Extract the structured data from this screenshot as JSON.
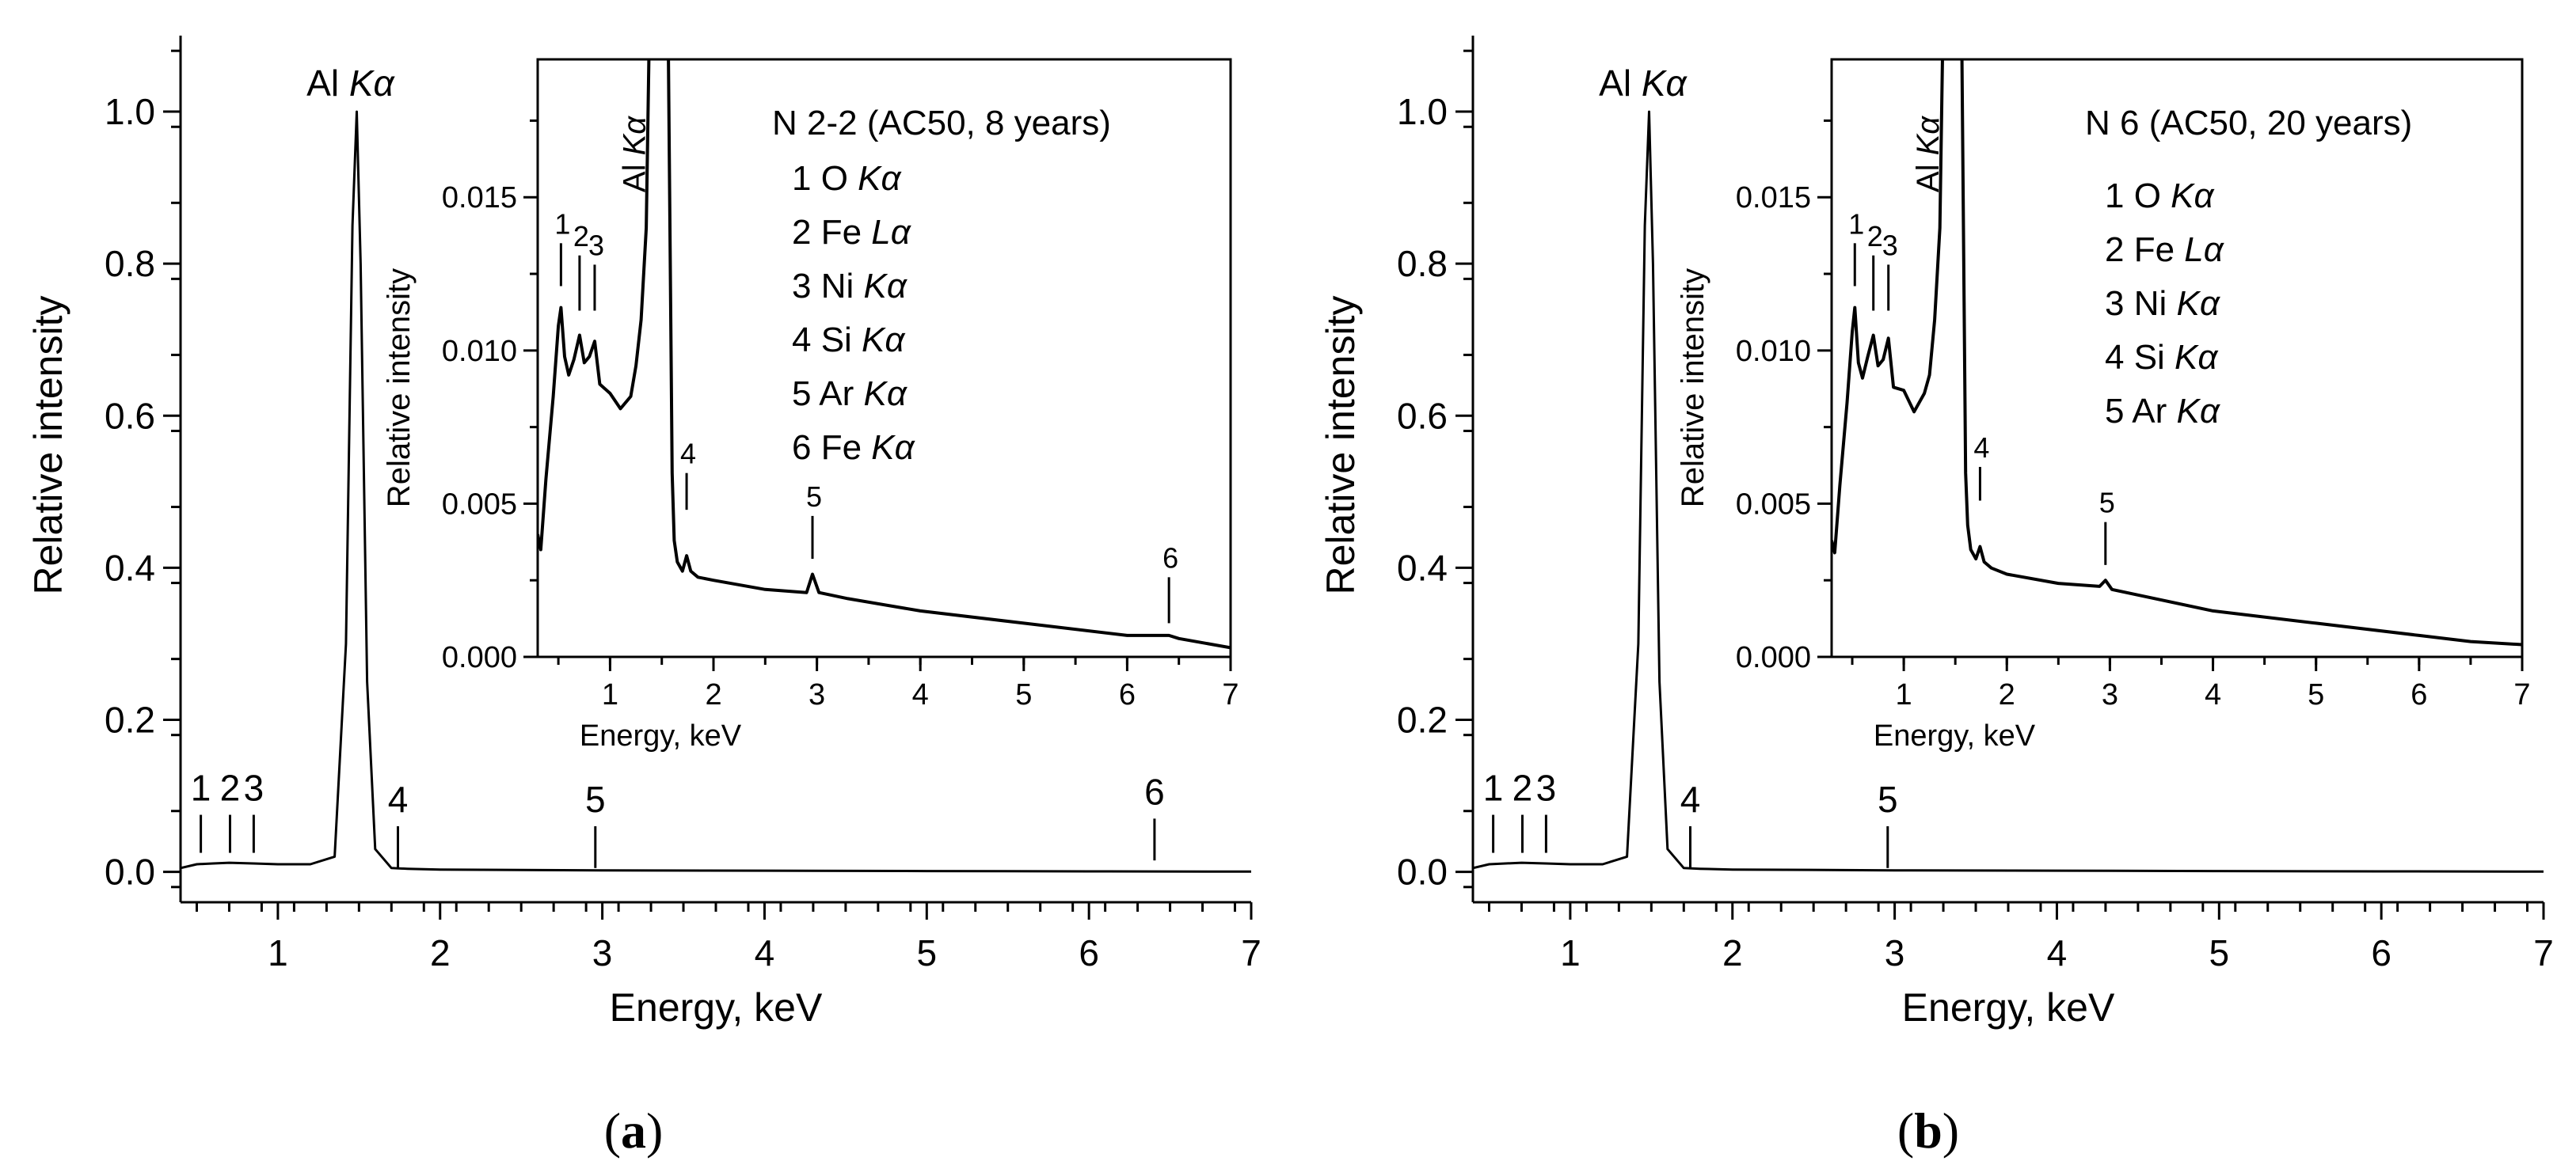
{
  "chart_data": [
    {
      "id": "a",
      "type": "line",
      "panel_label": "(a)",
      "panel_letter": "a",
      "xlabel": "Energy, keV",
      "ylabel": "Relative intensity",
      "xlim": [
        0.4,
        7.0
      ],
      "ylim": [
        -0.04,
        1.1
      ],
      "xticks": [
        1,
        2,
        3,
        4,
        5,
        6,
        7
      ],
      "yticks": [
        0.0,
        0.2,
        0.4,
        0.6,
        0.8,
        1.0
      ],
      "ytick_labels": [
        "0.0",
        "0.2",
        "0.4",
        "0.6",
        "0.8",
        "1.0"
      ],
      "main_peak_label": "Al Kα",
      "main_peak_label_parts": [
        "Al ",
        "Kα"
      ],
      "main_peak": {
        "energy": 1.486,
        "intensity": 1.0
      },
      "spectrum": {
        "energy": [
          0.4,
          0.5,
          0.6,
          0.7,
          0.85,
          1.0,
          1.2,
          1.35,
          1.42,
          1.46,
          1.486,
          1.51,
          1.55,
          1.6,
          1.7,
          1.8,
          2.0,
          3.0,
          4.0,
          5.0,
          6.0,
          7.0
        ],
        "intensity": [
          0.005,
          0.01,
          0.011,
          0.012,
          0.011,
          0.01,
          0.01,
          0.02,
          0.3,
          0.85,
          1.0,
          0.8,
          0.25,
          0.03,
          0.005,
          0.004,
          0.003,
          0.002,
          0.0015,
          0.001,
          0.0006,
          0.0003
        ]
      },
      "markers": [
        {
          "label": "1",
          "energy": 0.525,
          "y1": 0.025,
          "y2": 0.075
        },
        {
          "label": "2",
          "energy": 0.705,
          "y1": 0.025,
          "y2": 0.075
        },
        {
          "label": "3",
          "energy": 0.851,
          "y1": 0.025,
          "y2": 0.075
        },
        {
          "label": "4",
          "energy": 1.74,
          "y1": 0.005,
          "y2": 0.06
        },
        {
          "label": "5",
          "energy": 2.957,
          "y1": 0.005,
          "y2": 0.06
        },
        {
          "label": "6",
          "energy": 6.404,
          "y1": 0.015,
          "y2": 0.07
        }
      ],
      "inset": {
        "xlim": [
          0.3,
          7.0
        ],
        "ylim": [
          0.0,
          0.0195
        ],
        "xticks": [
          1,
          2,
          3,
          4,
          5,
          6,
          7
        ],
        "yticks": [
          0.0,
          0.005,
          0.01,
          0.015
        ],
        "ytick_labels": [
          "0.000",
          "0.005",
          "0.010",
          "0.015"
        ],
        "xlabel": "Energy, keV",
        "ylabel": "Relative intensity",
        "peak_label": "Al Kα",
        "peak_label_parts": [
          "Al ",
          "Kα"
        ],
        "sample": "N 2-2 (AC50, 8 years)",
        "legend": [
          {
            "n": "1",
            "element": "O",
            "line": "Kα"
          },
          {
            "n": "2",
            "element": "Fe",
            "line": "Lα"
          },
          {
            "n": "3",
            "element": "Ni",
            "line": "Kα"
          },
          {
            "n": "4",
            "element": "Si",
            "line": "Kα"
          },
          {
            "n": "5",
            "element": "Ar",
            "line": "Kα"
          },
          {
            "n": "6",
            "element": "Fe",
            "line": "Kα"
          }
        ],
        "spectrum": {
          "energy": [
            0.3,
            0.33,
            0.38,
            0.45,
            0.5,
            0.525,
            0.56,
            0.6,
            0.65,
            0.705,
            0.75,
            0.8,
            0.851,
            0.9,
            1.0,
            1.1,
            1.2,
            1.25,
            1.3,
            1.35,
            1.4,
            1.45,
            1.5,
            1.55,
            1.6,
            1.62,
            1.65,
            1.7,
            1.74,
            1.78,
            1.85,
            2.0,
            2.5,
            2.9,
            2.957,
            3.02,
            3.3,
            4.0,
            5.0,
            6.0,
            6.404,
            6.5,
            7.0
          ],
          "intensity": [
            0.004,
            0.0035,
            0.0058,
            0.0085,
            0.0108,
            0.0114,
            0.0098,
            0.0092,
            0.0097,
            0.0105,
            0.0096,
            0.0098,
            0.0103,
            0.0089,
            0.0086,
            0.0081,
            0.0085,
            0.0095,
            0.011,
            0.014,
            0.025,
            0.025,
            0.025,
            0.025,
            0.006,
            0.0038,
            0.0031,
            0.0028,
            0.0033,
            0.0028,
            0.0026,
            0.0025,
            0.0022,
            0.0021,
            0.0027,
            0.0021,
            0.0019,
            0.0015,
            0.0011,
            0.0007,
            0.0007,
            0.0006,
            0.0003
          ]
        },
        "markers": [
          {
            "label": "1",
            "energy": 0.525,
            "y1": 0.0121,
            "y2": 0.0135
          },
          {
            "label": "2",
            "energy": 0.705,
            "y1": 0.0113,
            "y2": 0.0131
          },
          {
            "label": "3",
            "energy": 0.851,
            "y1": 0.0113,
            "y2": 0.0128
          },
          {
            "label": "4",
            "energy": 1.74,
            "y1": 0.0048,
            "y2": 0.006
          },
          {
            "label": "5",
            "energy": 2.957,
            "y1": 0.0032,
            "y2": 0.0046
          },
          {
            "label": "6",
            "energy": 6.404,
            "y1": 0.0011,
            "y2": 0.0026
          }
        ]
      }
    },
    {
      "id": "b",
      "type": "line",
      "panel_label": "(b)",
      "panel_letter": "b",
      "xlabel": "Energy, keV",
      "ylabel": "Relative intensity",
      "xlim": [
        0.4,
        7.0
      ],
      "ylim": [
        -0.04,
        1.1
      ],
      "xticks": [
        1,
        2,
        3,
        4,
        5,
        6,
        7
      ],
      "yticks": [
        0.0,
        0.2,
        0.4,
        0.6,
        0.8,
        1.0
      ],
      "ytick_labels": [
        "0.0",
        "0.2",
        "0.4",
        "0.6",
        "0.8",
        "1.0"
      ],
      "main_peak_label": "Al Kα",
      "main_peak_label_parts": [
        "Al ",
        "Kα"
      ],
      "main_peak": {
        "energy": 1.486,
        "intensity": 1.0
      },
      "spectrum": {
        "energy": [
          0.4,
          0.5,
          0.6,
          0.7,
          0.85,
          1.0,
          1.2,
          1.35,
          1.42,
          1.46,
          1.486,
          1.51,
          1.55,
          1.6,
          1.7,
          1.8,
          2.0,
          3.0,
          4.0,
          5.0,
          6.0,
          7.0
        ],
        "intensity": [
          0.005,
          0.01,
          0.011,
          0.012,
          0.011,
          0.01,
          0.01,
          0.02,
          0.3,
          0.85,
          1.0,
          0.8,
          0.25,
          0.03,
          0.005,
          0.004,
          0.003,
          0.002,
          0.0015,
          0.001,
          0.0006,
          0.0003
        ]
      },
      "markers": [
        {
          "label": "1",
          "energy": 0.525,
          "y1": 0.025,
          "y2": 0.075
        },
        {
          "label": "2",
          "energy": 0.705,
          "y1": 0.025,
          "y2": 0.075
        },
        {
          "label": "3",
          "energy": 0.851,
          "y1": 0.025,
          "y2": 0.075
        },
        {
          "label": "4",
          "energy": 1.74,
          "y1": 0.005,
          "y2": 0.06
        },
        {
          "label": "5",
          "energy": 2.957,
          "y1": 0.005,
          "y2": 0.06
        }
      ],
      "inset": {
        "xlim": [
          0.3,
          7.0
        ],
        "ylim": [
          0.0,
          0.0195
        ],
        "xticks": [
          1,
          2,
          3,
          4,
          5,
          6,
          7
        ],
        "yticks": [
          0.0,
          0.005,
          0.01,
          0.015
        ],
        "ytick_labels": [
          "0.000",
          "0.005",
          "0.010",
          "0.015"
        ],
        "xlabel": "Energy, keV",
        "ylabel": "Relative intensity",
        "peak_label": "Al Kα",
        "peak_label_parts": [
          "Al ",
          "Kα"
        ],
        "sample": "N 6 (AC50, 20 years)",
        "legend": [
          {
            "n": "1",
            "element": "O",
            "line": "Kα"
          },
          {
            "n": "2",
            "element": "Fe",
            "line": "Lα"
          },
          {
            "n": "3",
            "element": "Ni",
            "line": "Kα"
          },
          {
            "n": "4",
            "element": "Si",
            "line": "Kα"
          },
          {
            "n": "5",
            "element": "Ar",
            "line": "Kα"
          }
        ],
        "spectrum": {
          "energy": [
            0.3,
            0.33,
            0.38,
            0.45,
            0.5,
            0.525,
            0.56,
            0.6,
            0.65,
            0.705,
            0.75,
            0.8,
            0.851,
            0.9,
            1.0,
            1.1,
            1.2,
            1.25,
            1.3,
            1.35,
            1.4,
            1.45,
            1.5,
            1.55,
            1.6,
            1.62,
            1.65,
            1.7,
            1.74,
            1.78,
            1.85,
            2.0,
            2.5,
            2.9,
            2.957,
            3.02,
            3.3,
            4.0,
            5.0,
            6.0,
            6.5,
            7.0
          ],
          "intensity": [
            0.0038,
            0.0034,
            0.0056,
            0.0083,
            0.0106,
            0.0114,
            0.0096,
            0.0091,
            0.0098,
            0.0105,
            0.0095,
            0.0097,
            0.0104,
            0.0088,
            0.0087,
            0.008,
            0.0086,
            0.0092,
            0.011,
            0.014,
            0.025,
            0.025,
            0.025,
            0.025,
            0.006,
            0.0043,
            0.0035,
            0.0032,
            0.0036,
            0.0031,
            0.0029,
            0.0027,
            0.0024,
            0.0023,
            0.0025,
            0.0022,
            0.002,
            0.0015,
            0.0011,
            0.0007,
            0.0005,
            0.0004
          ]
        },
        "markers": [
          {
            "label": "1",
            "energy": 0.525,
            "y1": 0.0121,
            "y2": 0.0135
          },
          {
            "label": "2",
            "energy": 0.705,
            "y1": 0.0113,
            "y2": 0.0131
          },
          {
            "label": "3",
            "energy": 0.851,
            "y1": 0.0113,
            "y2": 0.0128
          },
          {
            "label": "4",
            "energy": 1.74,
            "y1": 0.0051,
            "y2": 0.0062
          },
          {
            "label": "5",
            "energy": 2.957,
            "y1": 0.003,
            "y2": 0.0044
          }
        ]
      }
    }
  ]
}
